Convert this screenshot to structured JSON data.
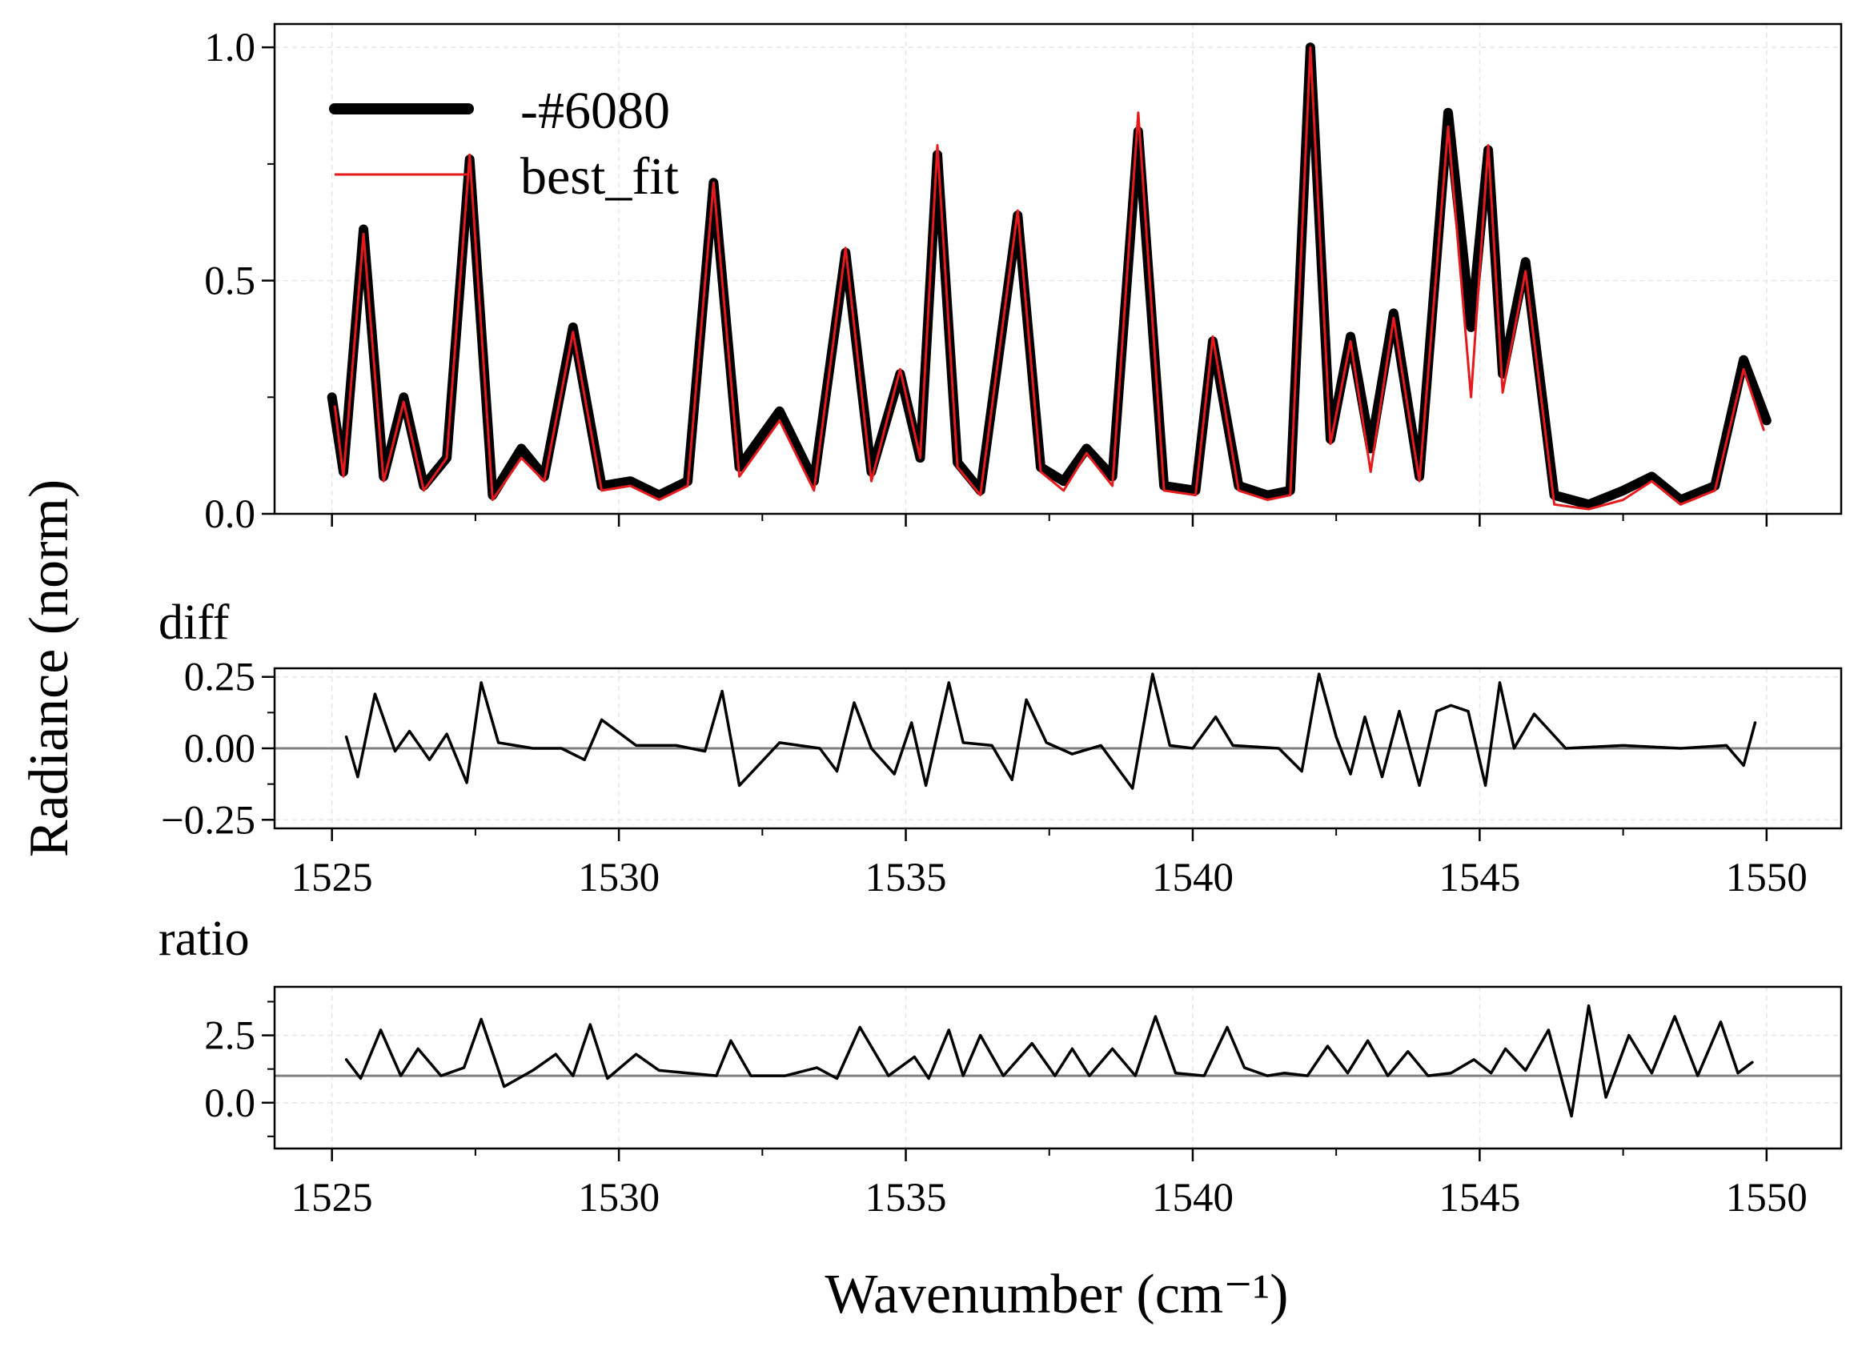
{
  "ylabel": "Radiance (norm)",
  "xlabel": "Wavenumber (cm⁻¹)",
  "legend": {
    "entries": [
      "-#6080",
      "best_fit"
    ]
  },
  "colors": {
    "observed": "#000000",
    "fit": "#e41a1c",
    "zero_line": "#808080",
    "grid": "#e6e6e6"
  },
  "chart_data": [
    {
      "type": "line",
      "panel": "main",
      "title": "",
      "xlabel": "",
      "ylabel": "Radiance (norm)",
      "xlim": [
        1524,
        1551.3
      ],
      "ylim": [
        0,
        1.05
      ],
      "yticks": [
        "0.0",
        "0.5",
        "1.0"
      ],
      "grid": true,
      "legend_position": "top-left",
      "series": [
        {
          "name": "-#6080",
          "color": "#000000",
          "x": [
            1525,
            1525.2,
            1525.55,
            1525.9,
            1526.25,
            1526.6,
            1527,
            1527.4,
            1527.8,
            1528.3,
            1528.7,
            1529.2,
            1529.7,
            1530.2,
            1530.7,
            1531.2,
            1531.65,
            1532.1,
            1532.8,
            1533.4,
            1533.95,
            1534.4,
            1534.9,
            1535.25,
            1535.55,
            1535.9,
            1536.3,
            1536.95,
            1537.35,
            1537.75,
            1538.15,
            1538.6,
            1539.05,
            1539.5,
            1540.05,
            1540.35,
            1540.8,
            1541.3,
            1541.7,
            1542.05,
            1542.4,
            1542.75,
            1543.1,
            1543.5,
            1543.95,
            1544.45,
            1544.85,
            1545.15,
            1545.4,
            1545.8,
            1546.3,
            1546.9,
            1547.5,
            1548,
            1548.5,
            1549.1,
            1549.6,
            1550
          ],
          "y": [
            0.25,
            0.09,
            0.61,
            0.08,
            0.25,
            0.06,
            0.12,
            0.76,
            0.04,
            0.14,
            0.08,
            0.4,
            0.06,
            0.07,
            0.04,
            0.07,
            0.71,
            0.1,
            0.22,
            0.07,
            0.56,
            0.09,
            0.3,
            0.12,
            0.77,
            0.11,
            0.05,
            0.64,
            0.1,
            0.07,
            0.14,
            0.08,
            0.82,
            0.06,
            0.05,
            0.37,
            0.06,
            0.04,
            0.05,
            1.0,
            0.16,
            0.38,
            0.14,
            0.43,
            0.08,
            0.86,
            0.4,
            0.78,
            0.3,
            0.54,
            0.04,
            0.02,
            0.05,
            0.08,
            0.03,
            0.06,
            0.33,
            0.2
          ]
        },
        {
          "name": "best_fit",
          "color": "#e41a1c",
          "x": [
            1525.05,
            1525.2,
            1525.55,
            1525.9,
            1526.25,
            1526.6,
            1527,
            1527.4,
            1527.8,
            1528.3,
            1528.7,
            1529.2,
            1529.7,
            1530.2,
            1530.7,
            1531.2,
            1531.65,
            1532.1,
            1532.8,
            1533.4,
            1533.95,
            1534.4,
            1534.9,
            1535.25,
            1535.55,
            1535.9,
            1536.3,
            1536.95,
            1537.35,
            1537.75,
            1538.15,
            1538.6,
            1539.05,
            1539.5,
            1540.05,
            1540.35,
            1540.8,
            1541.3,
            1541.7,
            1542.05,
            1542.4,
            1542.75,
            1543.1,
            1543.5,
            1543.95,
            1544.45,
            1544.85,
            1545.15,
            1545.4,
            1545.8,
            1546.3,
            1546.9,
            1547.5,
            1548,
            1548.5,
            1549.1,
            1549.6,
            1549.95
          ],
          "y": [
            0.23,
            0.08,
            0.6,
            0.07,
            0.24,
            0.05,
            0.12,
            0.77,
            0.03,
            0.12,
            0.07,
            0.39,
            0.05,
            0.06,
            0.03,
            0.06,
            0.71,
            0.08,
            0.2,
            0.05,
            0.57,
            0.07,
            0.31,
            0.12,
            0.79,
            0.1,
            0.04,
            0.65,
            0.09,
            0.05,
            0.13,
            0.06,
            0.86,
            0.05,
            0.04,
            0.38,
            0.05,
            0.03,
            0.04,
            1.0,
            0.15,
            0.37,
            0.09,
            0.42,
            0.07,
            0.83,
            0.25,
            0.79,
            0.26,
            0.52,
            0.02,
            0.01,
            0.03,
            0.07,
            0.02,
            0.05,
            0.31,
            0.18
          ]
        }
      ]
    },
    {
      "type": "line",
      "panel": "diff",
      "title": "diff",
      "xlim": [
        1524,
        1551.3
      ],
      "ylim": [
        -0.28,
        0.28
      ],
      "yticks": [
        "0.25",
        "0.00",
        "−0.25"
      ],
      "xticks": [
        "1525",
        "1530",
        "1535",
        "1540",
        "1545",
        "1550"
      ],
      "reference_line": 0,
      "grid": true,
      "series": [
        {
          "color": "#000000",
          "x": [
            1525.25,
            1525.45,
            1525.75,
            1526.1,
            1526.35,
            1526.7,
            1527,
            1527.35,
            1527.6,
            1527.9,
            1528.5,
            1529,
            1529.4,
            1529.7,
            1530.3,
            1531,
            1531.5,
            1531.8,
            1532.1,
            1532.8,
            1533.5,
            1533.8,
            1534.1,
            1534.4,
            1534.8,
            1535.1,
            1535.35,
            1535.75,
            1536,
            1536.5,
            1536.85,
            1537.1,
            1537.45,
            1537.9,
            1538.4,
            1538.95,
            1539.3,
            1539.6,
            1540,
            1540.4,
            1540.7,
            1541.5,
            1541.9,
            1542.2,
            1542.5,
            1542.75,
            1543,
            1543.3,
            1543.6,
            1543.95,
            1544.25,
            1544.5,
            1544.8,
            1545.1,
            1545.35,
            1545.6,
            1545.95,
            1546.5,
            1547.5,
            1548.5,
            1549.3,
            1549.6,
            1549.8
          ],
          "y": [
            0.04,
            -0.1,
            0.19,
            -0.01,
            0.06,
            -0.04,
            0.05,
            -0.12,
            0.23,
            0.02,
            0.0,
            0.0,
            -0.04,
            0.1,
            0.01,
            0.01,
            -0.01,
            0.2,
            -0.13,
            0.02,
            0.0,
            -0.08,
            0.16,
            0.0,
            -0.09,
            0.09,
            -0.13,
            0.23,
            0.02,
            0.01,
            -0.11,
            0.17,
            0.02,
            -0.02,
            0.01,
            -0.14,
            0.26,
            0.01,
            0.0,
            0.11,
            0.01,
            0.0,
            -0.08,
            0.26,
            0.04,
            -0.09,
            0.11,
            -0.1,
            0.13,
            -0.13,
            0.13,
            0.15,
            0.13,
            -0.13,
            0.23,
            0.0,
            0.12,
            0.0,
            0.01,
            0.0,
            0.01,
            -0.06,
            0.09
          ]
        }
      ]
    },
    {
      "type": "line",
      "panel": "ratio",
      "title": "ratio",
      "xlim": [
        1524,
        1551.3
      ],
      "ylim": [
        -1.7,
        4.3
      ],
      "yticks": [
        "2.5",
        "0.0"
      ],
      "xticks": [
        "1525",
        "1530",
        "1535",
        "1540",
        "1545",
        "1550"
      ],
      "reference_line": 1,
      "grid": true,
      "series": [
        {
          "color": "#000000",
          "x": [
            1525.25,
            1525.5,
            1525.85,
            1526.2,
            1526.5,
            1526.9,
            1527.3,
            1527.6,
            1528,
            1528.5,
            1528.9,
            1529.2,
            1529.5,
            1529.8,
            1530.3,
            1530.7,
            1531.2,
            1531.7,
            1531.95,
            1532.3,
            1532.9,
            1533.45,
            1533.8,
            1534.2,
            1534.7,
            1535.15,
            1535.4,
            1535.75,
            1536,
            1536.3,
            1536.7,
            1537.2,
            1537.6,
            1537.9,
            1538.2,
            1538.6,
            1539,
            1539.35,
            1539.7,
            1540.2,
            1540.6,
            1540.9,
            1541.3,
            1541.6,
            1542,
            1542.35,
            1542.7,
            1543.05,
            1543.4,
            1543.75,
            1544.1,
            1544.5,
            1544.9,
            1545.2,
            1545.45,
            1545.8,
            1546.2,
            1546.6,
            1546.9,
            1547.2,
            1547.6,
            1548,
            1548.4,
            1548.8,
            1549.2,
            1549.5,
            1549.75
          ],
          "y": [
            1.6,
            0.9,
            2.7,
            1.0,
            2.0,
            1.0,
            1.3,
            3.1,
            0.6,
            1.2,
            1.8,
            1.0,
            2.9,
            0.9,
            1.8,
            1.2,
            1.1,
            1.0,
            2.3,
            1.0,
            1.0,
            1.3,
            0.9,
            2.8,
            1.0,
            1.7,
            0.9,
            2.7,
            1.0,
            2.5,
            1.0,
            2.2,
            1.0,
            2.0,
            1.0,
            2.0,
            1.0,
            3.2,
            1.1,
            1.0,
            2.8,
            1.3,
            1.0,
            1.1,
            1.0,
            2.1,
            1.1,
            2.3,
            1.0,
            1.9,
            1.0,
            1.1,
            1.6,
            1.1,
            2.0,
            1.2,
            2.7,
            -0.5,
            3.6,
            0.2,
            2.5,
            1.1,
            3.2,
            1.0,
            3.0,
            1.1,
            1.5
          ]
        }
      ]
    }
  ]
}
